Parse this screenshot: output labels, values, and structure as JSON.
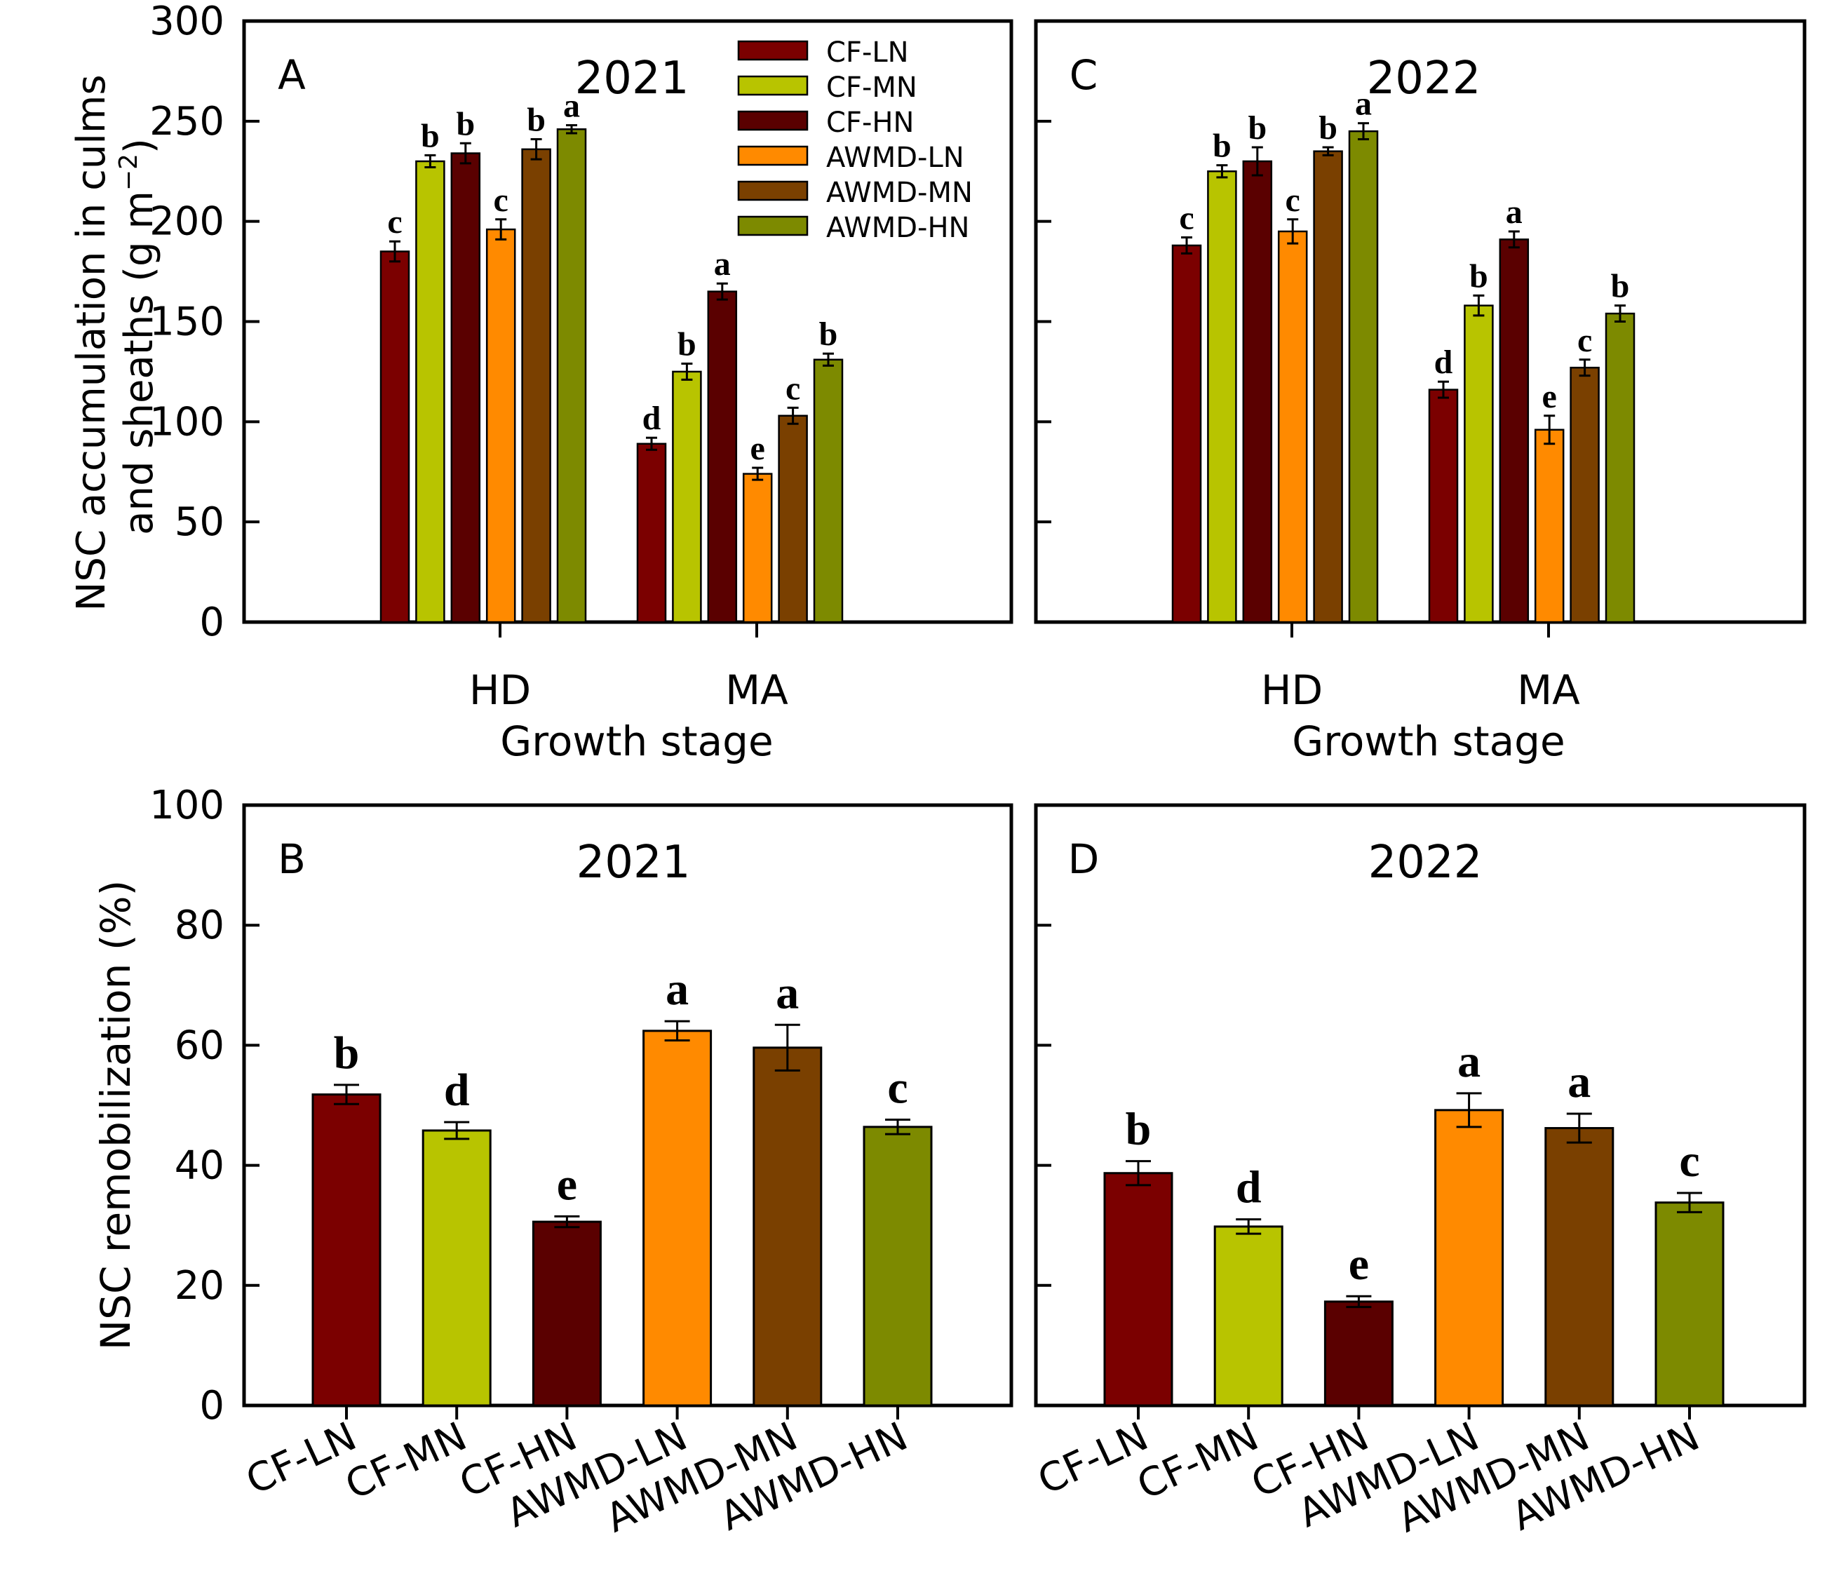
{
  "figure": {
    "y_label_top_line1": "NSC accumulation in culms",
    "y_label_top_line2": "and sheaths (g m",
    "y_label_top_sup": "−2",
    "y_label_top_close": ")",
    "y_label_bottom": "NSC remobilization (%)"
  },
  "series": [
    {
      "name": "CF-LN",
      "color": "#7b0000"
    },
    {
      "name": "CF-MN",
      "color": "#b8c400"
    },
    {
      "name": "CF-HN",
      "color": "#5a0000"
    },
    {
      "name": "AWMD-LN",
      "color": "#ff8a00"
    },
    {
      "name": "AWMD-MN",
      "color": "#7a4000"
    },
    {
      "name": "AWMD-HN",
      "color": "#7d8a00"
    }
  ],
  "chart_data": [
    {
      "panel": "A",
      "year": "2021",
      "type": "bar",
      "xlabel": "Growth stage",
      "ylabel": "NSC accumulation in culms and sheaths (g m−2)",
      "ylim": [
        0,
        300
      ],
      "yticks": [
        0,
        50,
        100,
        150,
        200,
        250,
        300
      ],
      "show_ytick_labels": true,
      "categories": [
        "HD",
        "MA"
      ],
      "series": [
        {
          "name": "CF-LN",
          "values": [
            185,
            89
          ],
          "errors": [
            5,
            3
          ],
          "letters": [
            "c",
            "d"
          ]
        },
        {
          "name": "CF-MN",
          "values": [
            230,
            125
          ],
          "errors": [
            3,
            4
          ],
          "letters": [
            "b",
            "b"
          ]
        },
        {
          "name": "CF-HN",
          "values": [
            234,
            165
          ],
          "errors": [
            5,
            4
          ],
          "letters": [
            "b",
            "a"
          ]
        },
        {
          "name": "AWMD-LN",
          "values": [
            196,
            74
          ],
          "errors": [
            5,
            3
          ],
          "letters": [
            "c",
            "e"
          ]
        },
        {
          "name": "AWMD-MN",
          "values": [
            236,
            103
          ],
          "errors": [
            5,
            4
          ],
          "letters": [
            "b",
            "c"
          ]
        },
        {
          "name": "AWMD-HN",
          "values": [
            246,
            131
          ],
          "errors": [
            2,
            3
          ],
          "letters": [
            "a",
            "b"
          ]
        }
      ],
      "legend": [
        "CF-LN",
        "CF-MN",
        "CF-HN",
        "AWMD-LN",
        "AWMD-MN",
        "AWMD-HN"
      ]
    },
    {
      "panel": "C",
      "year": "2022",
      "type": "bar",
      "xlabel": "Growth stage",
      "ylabel": "",
      "ylim": [
        0,
        300
      ],
      "yticks": [
        0,
        50,
        100,
        150,
        200,
        250,
        300
      ],
      "show_ytick_labels": false,
      "categories": [
        "HD",
        "MA"
      ],
      "series": [
        {
          "name": "CF-LN",
          "values": [
            188,
            116
          ],
          "errors": [
            4,
            4
          ],
          "letters": [
            "c",
            "d"
          ]
        },
        {
          "name": "CF-MN",
          "values": [
            225,
            158
          ],
          "errors": [
            3,
            5
          ],
          "letters": [
            "b",
            "b"
          ]
        },
        {
          "name": "CF-HN",
          "values": [
            230,
            191
          ],
          "errors": [
            7,
            4
          ],
          "letters": [
            "b",
            "a"
          ]
        },
        {
          "name": "AWMD-LN",
          "values": [
            195,
            96
          ],
          "errors": [
            6,
            7
          ],
          "letters": [
            "c",
            "e"
          ]
        },
        {
          "name": "AWMD-MN",
          "values": [
            235,
            127
          ],
          "errors": [
            2,
            4
          ],
          "letters": [
            "b",
            "c"
          ]
        },
        {
          "name": "AWMD-HN",
          "values": [
            245,
            154
          ],
          "errors": [
            4,
            4
          ],
          "letters": [
            "a",
            "b"
          ]
        }
      ]
    },
    {
      "panel": "B",
      "year": "2021",
      "type": "bar",
      "xlabel": "",
      "ylabel": "NSC remobilization (%)",
      "ylim": [
        0,
        100
      ],
      "yticks": [
        0,
        20,
        40,
        60,
        80,
        100
      ],
      "show_ytick_labels": true,
      "categories": [
        "CF-LN",
        "CF-MN",
        "CF-HN",
        "AWMD-LN",
        "AWMD-MN",
        "AWMD-HN"
      ],
      "values": [
        51.8,
        45.8,
        30.6,
        62.4,
        59.6,
        46.4
      ],
      "errors": [
        1.6,
        1.4,
        0.9,
        1.6,
        3.8,
        1.2
      ],
      "letters": [
        "b",
        "d",
        "e",
        "a",
        "a",
        "c"
      ]
    },
    {
      "panel": "D",
      "year": "2022",
      "type": "bar",
      "xlabel": "",
      "ylabel": "",
      "ylim": [
        0,
        100
      ],
      "yticks": [
        0,
        20,
        40,
        60,
        80,
        100
      ],
      "show_ytick_labels": false,
      "categories": [
        "CF-LN",
        "CF-MN",
        "CF-HN",
        "AWMD-LN",
        "AWMD-MN",
        "AWMD-HN"
      ],
      "values": [
        38.7,
        29.8,
        17.3,
        49.2,
        46.2,
        33.8
      ],
      "errors": [
        2.0,
        1.2,
        0.9,
        2.8,
        2.4,
        1.6
      ],
      "letters": [
        "b",
        "d",
        "e",
        "a",
        "a",
        "c"
      ]
    }
  ]
}
